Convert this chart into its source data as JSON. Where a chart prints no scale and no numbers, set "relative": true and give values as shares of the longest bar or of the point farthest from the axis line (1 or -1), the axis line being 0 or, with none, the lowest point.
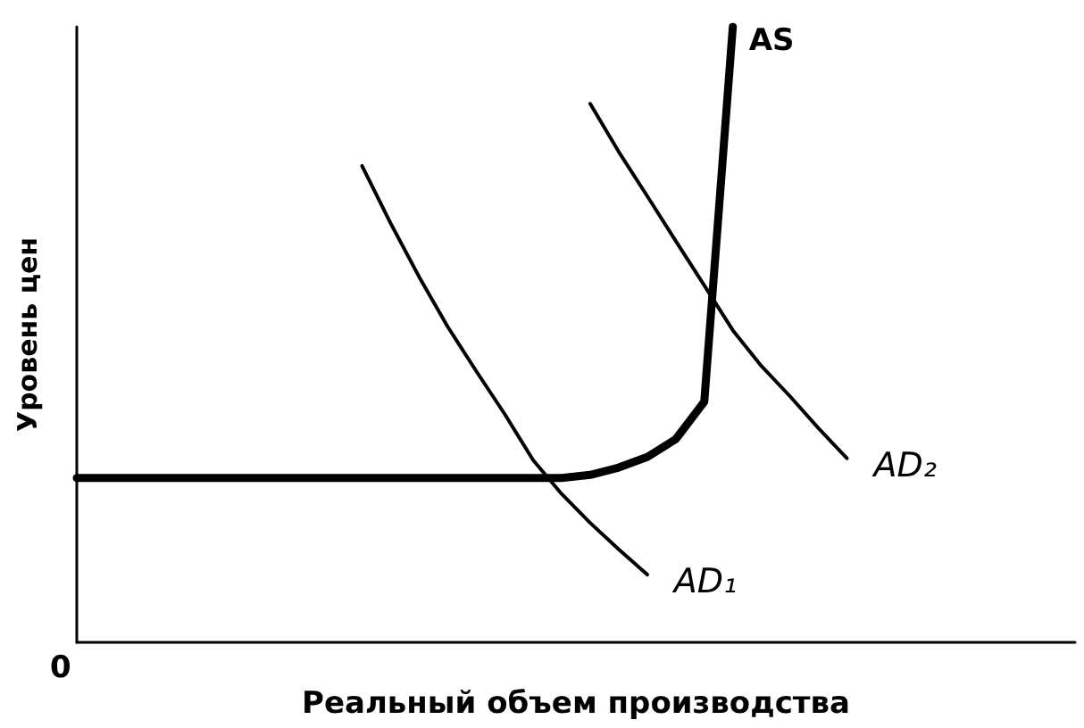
{
  "chart_data": {
    "type": "line",
    "relative": true,
    "xlabel": "Реальный объем производства",
    "ylabel": "Уровень цен",
    "annotations": [
      "0"
    ],
    "categories": [
      null,
      null,
      null,
      null,
      null,
      null,
      null,
      null,
      null,
      null,
      null,
      null,
      null,
      null,
      null,
      null,
      null,
      null,
      null,
      null,
      null,
      null,
      null,
      null,
      null,
      null,
      null,
      null,
      null,
      null,
      null,
      null,
      null,
      null,
      null,
      null
    ],
    "series": [
      {
        "name": "AS",
        "color": "#000000",
        "values": [
          0.267,
          0.267,
          0.267,
          0.267,
          0.267,
          0.267,
          0.267,
          0.267,
          0.267,
          0.267,
          0.267,
          0.267,
          0.267,
          0.267,
          0.267,
          0.267,
          0.267,
          0.267,
          0.272,
          0.284,
          0.301,
          0.33,
          0.391,
          1.0,
          null,
          null,
          null,
          null,
          null,
          null,
          null,
          null,
          null,
          null,
          null,
          null
        ]
      },
      {
        "name": "AD₁",
        "color": "#000000",
        "values": [
          null,
          null,
          null,
          null,
          null,
          null,
          null,
          null,
          null,
          null,
          0.774,
          0.681,
          0.594,
          0.513,
          0.441,
          0.371,
          0.296,
          0.241,
          0.194,
          0.151,
          0.11,
          null,
          null,
          null,
          null,
          null,
          null,
          null,
          null,
          null,
          null,
          null,
          null,
          null,
          null,
          null
        ]
      },
      {
        "name": "AD₂",
        "color": "#000000",
        "values": [
          null,
          null,
          null,
          null,
          null,
          null,
          null,
          null,
          null,
          null,
          null,
          null,
          null,
          null,
          null,
          null,
          null,
          null,
          0.875,
          0.797,
          0.725,
          0.652,
          0.58,
          0.507,
          0.449,
          0.4,
          0.348,
          0.299,
          null,
          null,
          null,
          null,
          null,
          null,
          null,
          null
        ]
      }
    ],
    "grid": false,
    "legend": false,
    "marker": "none",
    "line_style": "solid"
  }
}
